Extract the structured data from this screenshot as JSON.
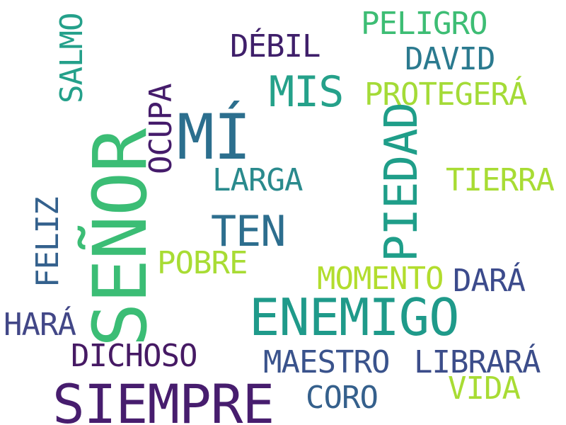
{
  "words": {
    "senor": {
      "text": "SEÑOR",
      "color": "#3bbd75"
    },
    "mi": {
      "text": "MÍ",
      "color": "#2c6f8e"
    },
    "enemigo": {
      "text": "ENEMIGO",
      "color": "#1f9a8a"
    },
    "siempre": {
      "text": "SIEMPRE",
      "color": "#471d6e"
    },
    "piedad": {
      "text": "PIEDAD",
      "color": "#1f9e89"
    },
    "ten": {
      "text": "TEN",
      "color": "#2d6e8e"
    },
    "mis": {
      "text": "MIS",
      "color": "#25a18a"
    },
    "debil": {
      "text": "DÉBIL",
      "color": "#3f1f6a"
    },
    "peligro": {
      "text": "PELIGRO",
      "color": "#3dbd74"
    },
    "david": {
      "text": "DAVID",
      "color": "#2b7a8f"
    },
    "protegera": {
      "text": "PROTEGERÁ",
      "color": "#a4db37"
    },
    "ocupa": {
      "text": "OCUPA",
      "color": "#451c6b"
    },
    "salmo": {
      "text": "SALMO",
      "color": "#24a08a"
    },
    "larga": {
      "text": "LARGA",
      "color": "#2a8a8d"
    },
    "tierra": {
      "text": "TIERRA",
      "color": "#a8dc34"
    },
    "feliz": {
      "text": "FELIZ",
      "color": "#34618d"
    },
    "pobre": {
      "text": "POBRE",
      "color": "#a8dc34"
    },
    "momento": {
      "text": "MOMENTO",
      "color": "#b2dd2e"
    },
    "dara": {
      "text": "DARÁ",
      "color": "#3c4b8c"
    },
    "hara": {
      "text": "HARÁ",
      "color": "#424787"
    },
    "dichoso": {
      "text": "DICHOSO",
      "color": "#461a64"
    },
    "maestro": {
      "text": "MAESTRO",
      "color": "#3a538c"
    },
    "librara": {
      "text": "LIBRARÁ",
      "color": "#3c4d8a"
    },
    "vida": {
      "text": "VIDA",
      "color": "#a8dc34"
    },
    "coro": {
      "text": "CORO",
      "color": "#35608c"
    }
  }
}
